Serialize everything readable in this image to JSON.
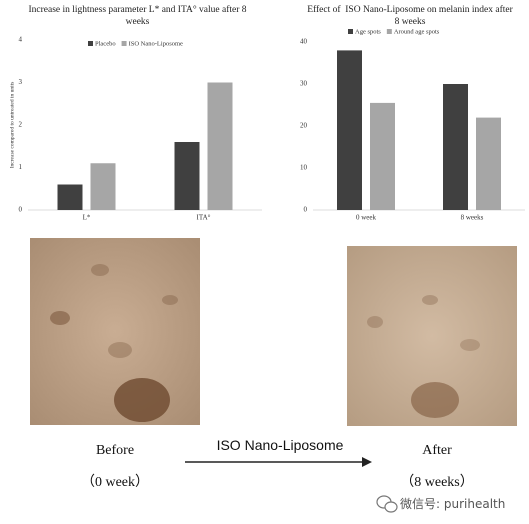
{
  "chart_data": [
    {
      "type": "bar",
      "title": "Increase in lightness parameter L* and ITA° value after 8 weeks",
      "y_label": "Increase compared to untreated in units",
      "categories": [
        "L*",
        "ITA°"
      ],
      "series": [
        {
          "name": "Placebo",
          "color": "#404040",
          "values": [
            0.6,
            1.6
          ]
        },
        {
          "name": "ISO Nano-Liposome",
          "color": "#a6a6a6",
          "values": [
            1.1,
            3.0
          ]
        }
      ],
      "ylim": [
        0,
        4
      ],
      "yticks": [
        0,
        1,
        2,
        3,
        4
      ],
      "grid": false
    },
    {
      "type": "bar",
      "title": "Effect of  ISO Nano-Liposome on melanin index after 8 weeks",
      "categories": [
        "0 week",
        "8 weeks"
      ],
      "series": [
        {
          "name": "Age spots",
          "color": "#404040",
          "values": [
            38,
            30
          ]
        },
        {
          "name": "Around age spots",
          "color": "#a6a6a6",
          "values": [
            25.5,
            22
          ]
        }
      ],
      "ylim": [
        0,
        40
      ],
      "yticks": [
        0,
        10,
        20,
        30,
        40
      ],
      "grid": false
    }
  ],
  "photos": {
    "before": "Before",
    "before_time": "（0 week）",
    "treatment": "ISO Nano-Liposome",
    "after": "After",
    "after_time": "（8 weeks）"
  },
  "watermark": "微信号: purihealth"
}
